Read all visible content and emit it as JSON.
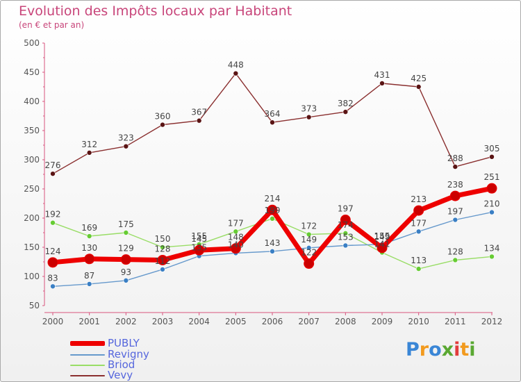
{
  "title": "Evolution des Impôts locaux par Habitant",
  "subtitle": "(en € et par an)",
  "logo": {
    "text": "Proxiti",
    "letters": [
      "P",
      "r",
      "o",
      "x",
      "i",
      "t",
      "i"
    ],
    "colors": [
      "#3a86d6",
      "#f29a1e",
      "#3a86d6",
      "#5aa832",
      "#e23d3d",
      "#f29a1e",
      "#5aa832"
    ]
  },
  "chart_data": {
    "type": "line",
    "title": "Evolution des Impôts locaux par Habitant",
    "subtitle": "(en € et par an)",
    "xlabel": "",
    "ylabel": "",
    "ylim": [
      50,
      500
    ],
    "yticks": [
      50,
      100,
      150,
      200,
      250,
      300,
      350,
      400,
      450,
      500
    ],
    "categories": [
      "2000",
      "2001",
      "2002",
      "2003",
      "2004",
      "2005",
      "2006",
      "2007",
      "2008",
      "2009",
      "2010",
      "2011",
      "2012"
    ],
    "grid": false,
    "legend_position": "bottom-left",
    "series": [
      {
        "name": "PUBLY",
        "color": "#ee0000",
        "width": 7,
        "dot": "#cc0000",
        "dotr": 7,
        "values": [
          124,
          130,
          129,
          128,
          145,
          148,
          214,
          122,
          197,
          149,
          213,
          238,
          251
        ],
        "labels": [
          "124",
          "130",
          "129",
          "128",
          "145",
          "148",
          "214",
          "122",
          "197",
          "149",
          "213",
          "238",
          "251"
        ]
      },
      {
        "name": "Revigny",
        "color": "#6699cc",
        "width": 1.4,
        "dot": "#3a7fc4",
        "dotr": 3.5,
        "values": [
          83,
          87,
          93,
          112,
          135,
          140,
          143,
          149,
          153,
          155,
          177,
          197,
          210
        ],
        "labels": [
          "83",
          "87",
          "93",
          "112",
          "135",
          "140",
          "143",
          "149",
          "153",
          "155",
          "177",
          "197",
          "210"
        ]
      },
      {
        "name": "Briod",
        "color": "#99dd66",
        "width": 1.4,
        "dot": "#66cc33",
        "dotr": 3.5,
        "values": [
          192,
          169,
          175,
          150,
          155,
          177,
          199,
          172,
          174,
          141,
          113,
          128,
          134
        ],
        "labels": [
          "192",
          "169",
          "175",
          "150",
          "155",
          "177",
          "199",
          "172",
          "174",
          "141",
          "113",
          "128",
          "134"
        ]
      },
      {
        "name": "Vevy",
        "color": "#8a2f2f",
        "width": 1.4,
        "dot": "#5a1414",
        "dotr": 3.5,
        "values": [
          276,
          312,
          323,
          360,
          367,
          448,
          364,
          373,
          382,
          431,
          425,
          288,
          305
        ],
        "labels": [
          "276",
          "312",
          "323",
          "360",
          "367",
          "448",
          "364",
          "373",
          "382",
          "431",
          "425",
          "288",
          "305"
        ]
      }
    ]
  }
}
